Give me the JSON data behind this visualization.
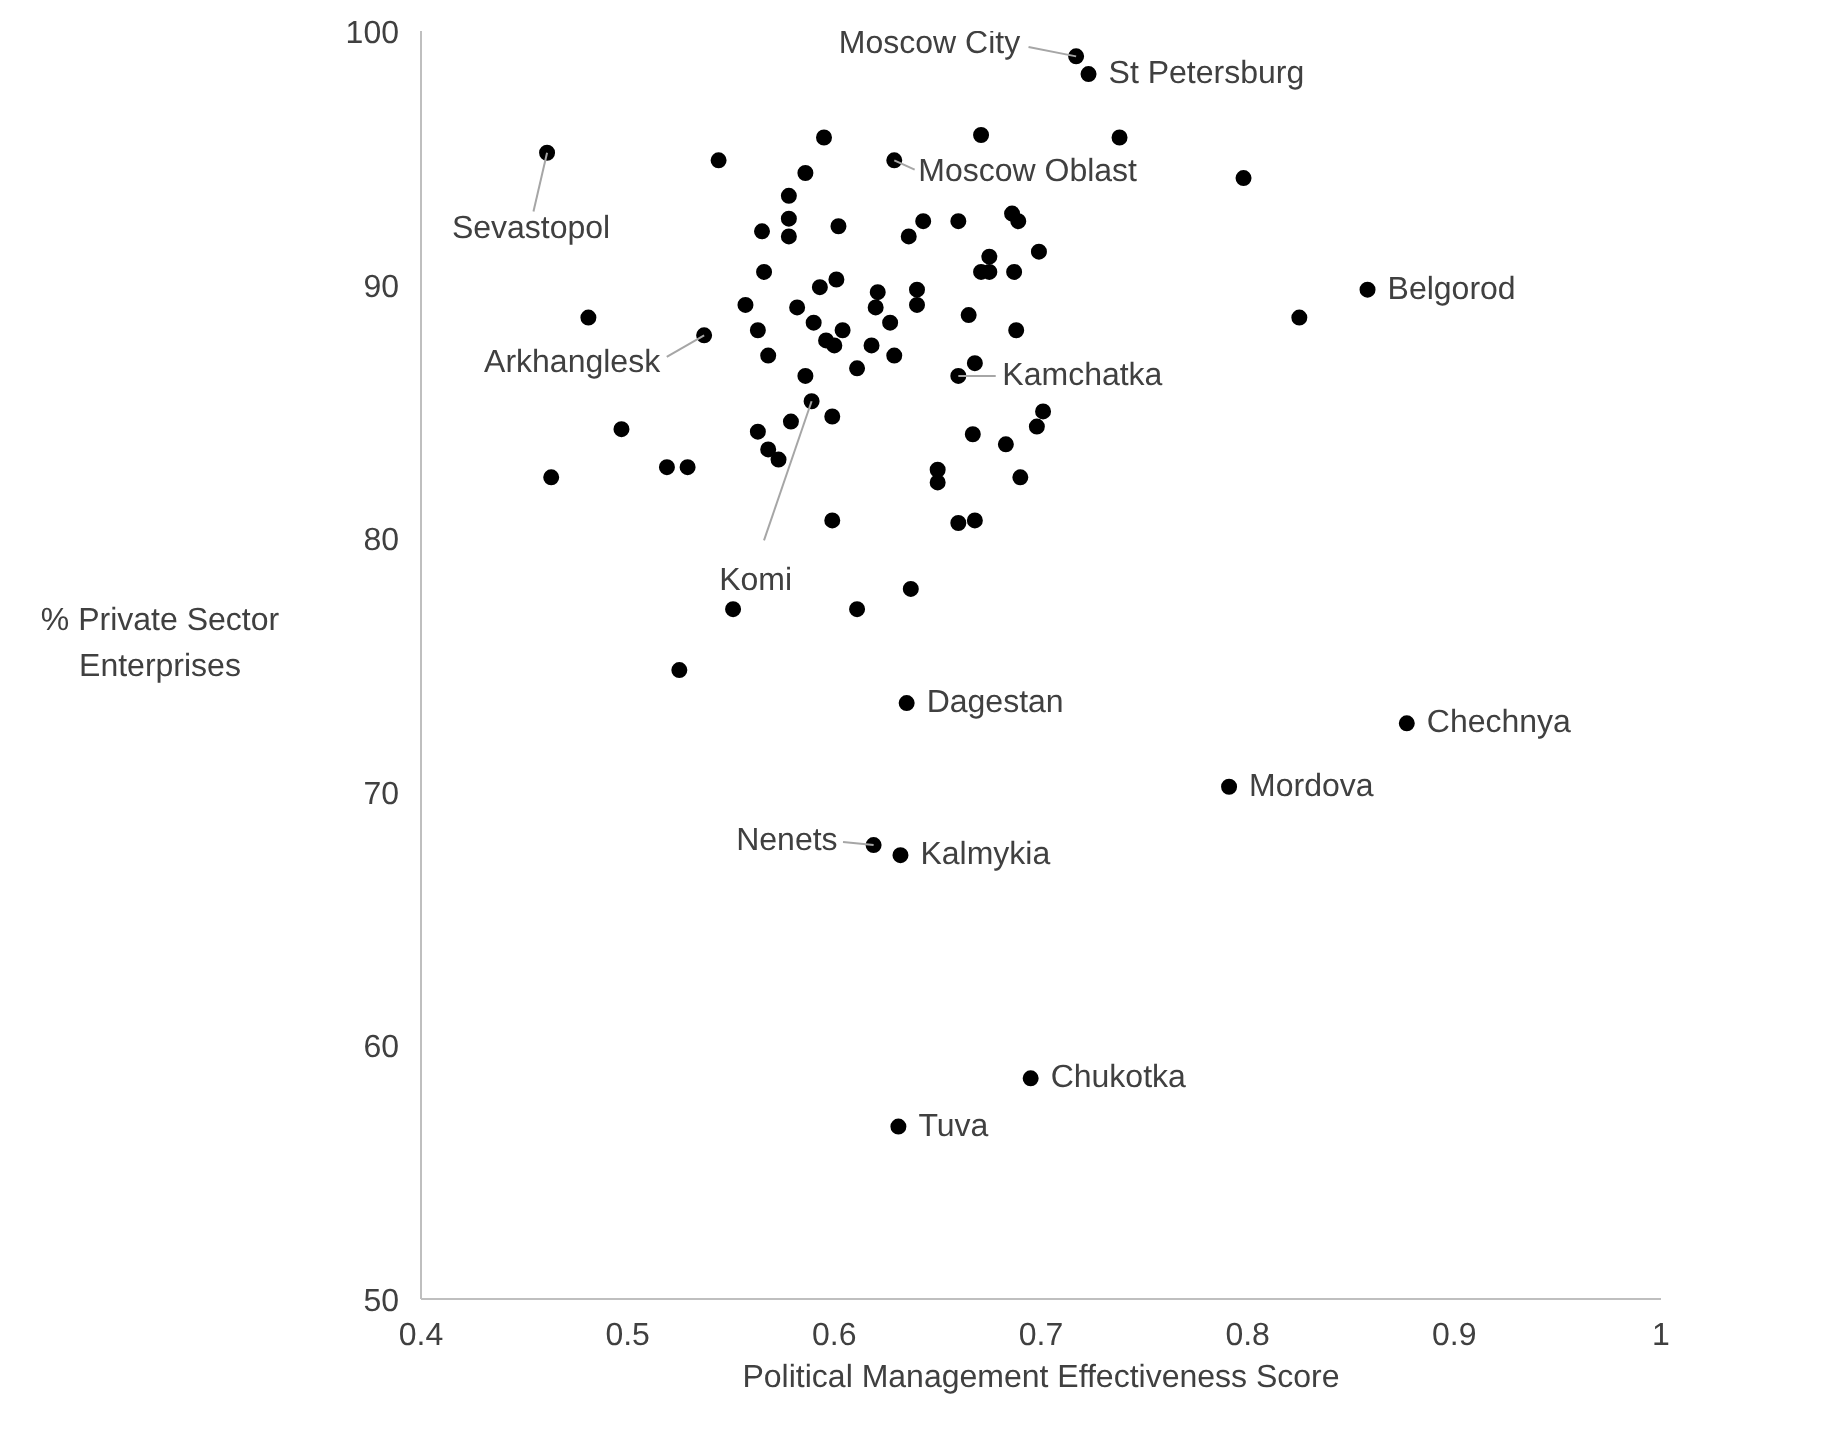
{
  "chart_data": {
    "type": "scatter",
    "xlabel": "Political Management Effectiveness Score",
    "ylabel": "% Private Sector Enterprises",
    "xlim": [
      0.4,
      1
    ],
    "xticks": [
      0.4,
      0.5,
      0.6,
      0.7,
      0.8,
      0.9,
      1
    ],
    "ylim": [
      50,
      100
    ],
    "yticks": [
      50,
      60,
      70,
      80,
      90,
      100
    ],
    "grid": false,
    "marker": "circle",
    "series": [
      {
        "color": "#000000",
        "x": [
          0.461,
          0.544,
          0.595,
          0.586,
          0.578,
          0.578,
          0.578,
          0.565,
          0.602,
          0.629,
          0.671,
          0.636,
          0.643,
          0.66,
          0.686,
          0.689,
          0.675,
          0.671,
          0.675,
          0.687,
          0.699,
          0.566,
          0.593,
          0.601,
          0.621,
          0.62,
          0.64,
          0.64,
          0.557,
          0.582,
          0.59,
          0.604,
          0.627,
          0.665,
          0.688,
          0.563,
          0.596,
          0.6,
          0.618,
          0.629,
          0.611,
          0.568,
          0.481,
          0.537,
          0.66,
          0.668,
          0.586,
          0.589,
          0.599,
          0.579,
          0.563,
          0.568,
          0.573,
          0.497,
          0.519,
          0.529,
          0.463,
          0.599,
          0.65,
          0.65,
          0.66,
          0.668,
          0.637,
          0.551,
          0.611,
          0.701,
          0.698,
          0.667,
          0.69,
          0.683,
          0.717,
          0.723,
          0.738,
          0.798,
          0.858,
          0.825,
          0.525,
          0.635,
          0.877,
          0.791,
          0.619,
          0.632,
          0.695,
          0.631
        ],
        "values": [
          95.2,
          94.9,
          95.8,
          94.4,
          93.5,
          92.6,
          91.9,
          92.1,
          92.3,
          94.9,
          95.9,
          91.9,
          92.5,
          92.5,
          92.8,
          92.5,
          91.1,
          90.5,
          90.5,
          90.5,
          91.3,
          90.5,
          89.9,
          90.2,
          89.7,
          89.1,
          89.8,
          89.2,
          89.2,
          89.1,
          88.5,
          88.2,
          88.5,
          88.8,
          88.2,
          88.2,
          87.8,
          87.6,
          87.6,
          87.2,
          86.7,
          87.2,
          88.7,
          88.0,
          86.4,
          86.9,
          86.4,
          85.4,
          84.8,
          84.6,
          84.2,
          83.5,
          83.1,
          84.3,
          82.8,
          82.8,
          82.4,
          80.7,
          82.7,
          82.2,
          80.6,
          80.7,
          78.0,
          77.2,
          77.2,
          85.0,
          84.4,
          84.1,
          82.4,
          83.7,
          99.0,
          98.3,
          95.8,
          94.2,
          89.8,
          88.7,
          74.8,
          73.5,
          72.7,
          70.2,
          67.9,
          67.5,
          58.7,
          56.8
        ]
      }
    ],
    "annotations": [
      {
        "text": "Moscow City",
        "x": 0.717,
        "y": 99.0
      },
      {
        "text": "St Petersburg",
        "x": 0.723,
        "y": 98.3
      },
      {
        "text": "Sevastopol",
        "x": 0.461,
        "y": 95.2
      },
      {
        "text": "Moscow Oblast",
        "x": 0.629,
        "y": 94.9
      },
      {
        "text": "Belgorod",
        "x": 0.858,
        "y": 89.8
      },
      {
        "text": "Arkhanglesk",
        "x": 0.537,
        "y": 88.0
      },
      {
        "text": "Kamchatka",
        "x": 0.66,
        "y": 86.4
      },
      {
        "text": "Komi",
        "x": 0.589,
        "y": 85.4
      },
      {
        "text": "Dagestan",
        "x": 0.635,
        "y": 73.5
      },
      {
        "text": "Chechnya",
        "x": 0.877,
        "y": 72.7
      },
      {
        "text": "Mordova",
        "x": 0.791,
        "y": 70.2
      },
      {
        "text": "Nenets",
        "x": 0.619,
        "y": 67.9
      },
      {
        "text": "Kalmykia",
        "x": 0.632,
        "y": 67.5
      },
      {
        "text": "Chukotka",
        "x": 0.695,
        "y": 58.7
      },
      {
        "text": "Tuva",
        "x": 0.631,
        "y": 56.8
      }
    ]
  }
}
